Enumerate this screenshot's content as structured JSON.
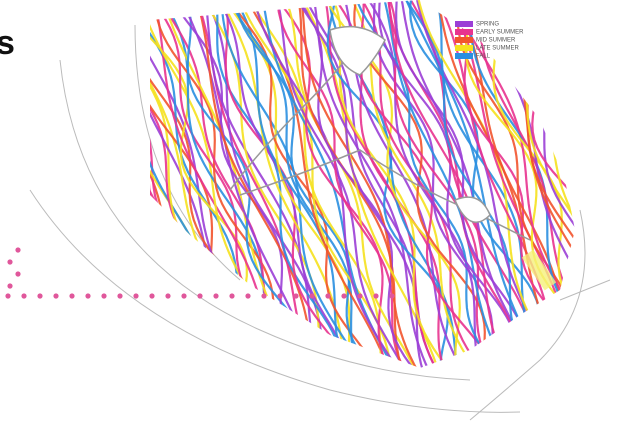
{
  "heading_fragment": "s",
  "legend": [
    {
      "label": "SPRING",
      "color": "#9b3fd6"
    },
    {
      "label": "EARLY SUMMER",
      "color": "#e8338f"
    },
    {
      "label": "MID SUMMER",
      "color": "#f2542d"
    },
    {
      "label": "LATE SUMMER",
      "color": "#f5e11e"
    },
    {
      "label": "FALL",
      "color": "#2a8fe0"
    }
  ]
}
